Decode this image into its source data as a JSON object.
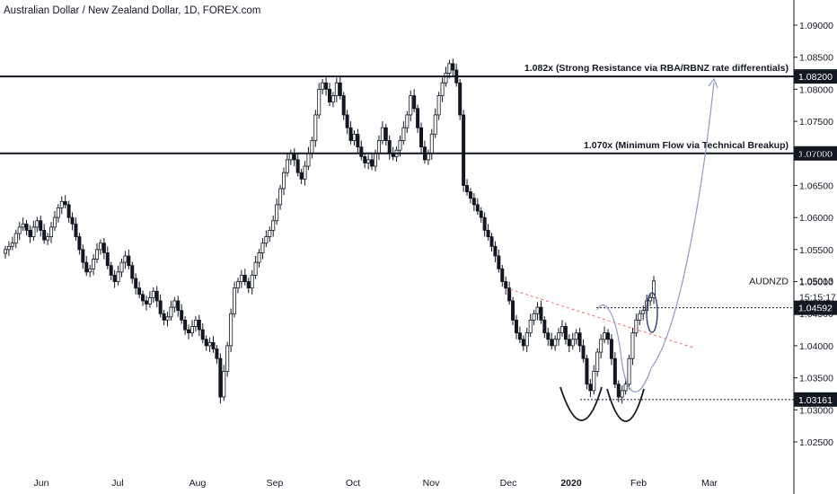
{
  "header": {
    "title": "Australian Dollar / New Zealand Dollar, 1D, FOREX.com"
  },
  "symbol": "AUDNZD",
  "countdown": "15:15:17",
  "colors": {
    "background": "#ffffff",
    "axis_line": "#131722",
    "candle": "#131722",
    "level_line": "#131722",
    "trendline": "#e57373",
    "arrow": "#8e9bbd",
    "tag_bg": "#131722",
    "tag_text": "#ffffff"
  },
  "chart_data": {
    "type": "candlestick",
    "title": "Australian Dollar / New Zealand Dollar, 1D, FOREX.com",
    "x_ticks": [
      "Jun",
      "Jul",
      "Aug",
      "Sep",
      "Oct",
      "Nov",
      "Dec",
      "2020",
      "Feb",
      "Mar"
    ],
    "y_ticks": [
      "1.09000",
      "1.08500",
      "1.08000",
      "1.07500",
      "1.07000",
      "1.06500",
      "1.06000",
      "1.05500",
      "1.05000",
      "1.04500",
      "1.04000",
      "1.03500",
      "1.03000",
      "1.02500"
    ],
    "ylim": [
      1.0205,
      1.0935
    ],
    "last_price": "1.05013",
    "levels": [
      {
        "price": 1.082,
        "label": "1.082x (Strong Resistance via RBA/RBNZ rate differentials)",
        "tag": "1.08200"
      },
      {
        "price": 1.07,
        "label": "1.070x (Minimum Flow via Technical Breakup)",
        "tag": "1.07000"
      },
      {
        "price": 1.04592,
        "label": "",
        "tag": "1.04592"
      },
      {
        "price": 1.03161,
        "label": "",
        "tag": "1.03161"
      }
    ],
    "series": [
      {
        "values": [
          1.055,
          1.0555,
          1.056,
          1.0575,
          1.0585,
          1.059,
          1.058,
          1.057,
          1.0585,
          1.0595,
          1.058,
          1.0565,
          1.057,
          1.0585,
          1.06,
          1.0615,
          1.0625,
          1.062,
          1.06,
          1.059,
          1.057,
          1.055,
          1.053,
          1.0515,
          1.052,
          1.0535,
          1.055,
          1.056,
          1.0545,
          1.0525,
          1.051,
          1.05,
          1.0515,
          1.053,
          1.054,
          1.0525,
          1.0505,
          1.049,
          1.048,
          1.047,
          1.0465,
          1.0475,
          1.0485,
          1.047,
          1.045,
          1.044,
          1.0445,
          1.046,
          1.047,
          1.0455,
          1.044,
          1.0425,
          1.042,
          1.043,
          1.044,
          1.0425,
          1.041,
          1.04,
          1.0405,
          1.0395,
          1.038,
          1.032,
          1.036,
          1.04,
          1.045,
          1.049,
          1.05,
          1.051,
          1.05,
          1.049,
          1.051,
          1.053,
          1.0545,
          1.056,
          1.057,
          1.058,
          1.0595,
          1.062,
          1.0645,
          1.067,
          1.069,
          1.07,
          1.069,
          1.067,
          1.066,
          1.068,
          1.07,
          1.072,
          1.076,
          1.08,
          1.081,
          1.08,
          1.078,
          1.079,
          1.081,
          1.079,
          1.076,
          1.074,
          1.072,
          1.073,
          1.071,
          1.0695,
          1.0685,
          1.069,
          1.068,
          1.07,
          1.072,
          1.074,
          1.072,
          1.07,
          1.0695,
          1.0705,
          1.072,
          1.074,
          1.076,
          1.079,
          1.077,
          1.074,
          1.071,
          1.069,
          1.07,
          1.073,
          1.076,
          1.079,
          1.081,
          1.0825,
          1.084,
          1.083,
          1.081,
          1.076,
          1.065,
          1.064,
          1.063,
          1.062,
          1.061,
          1.06,
          1.058,
          1.057,
          1.0555,
          1.054,
          1.052,
          1.05,
          1.049,
          1.047,
          1.044,
          1.042,
          1.041,
          1.04,
          1.042,
          1.044,
          1.045,
          1.046,
          1.044,
          1.042,
          1.041,
          1.04,
          1.041,
          1.042,
          1.043,
          1.041,
          1.04,
          1.041,
          1.042,
          1.04,
          1.038,
          1.034,
          1.033,
          1.036,
          1.039,
          1.041,
          1.042,
          1.041,
          1.038,
          1.034,
          1.032,
          1.033,
          1.034,
          1.038,
          1.042,
          1.044,
          1.045,
          1.0455,
          1.047,
          1.0475,
          1.0501
        ]
      }
    ]
  }
}
